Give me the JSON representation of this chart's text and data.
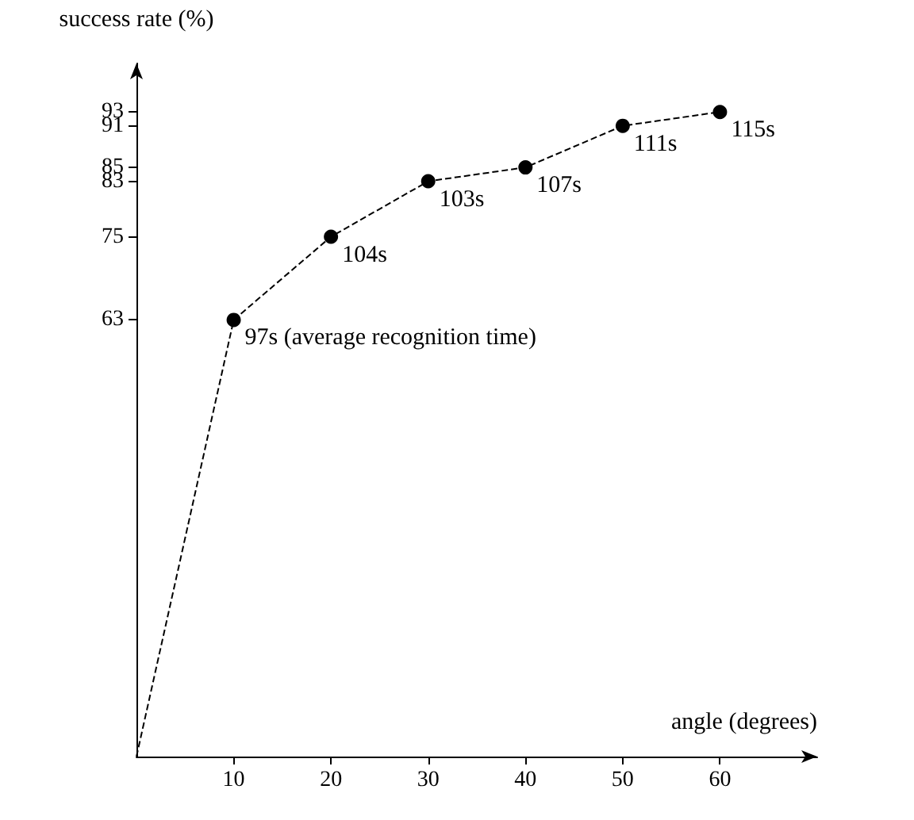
{
  "chart_data": {
    "type": "line",
    "xlabel": "angle (degrees)",
    "ylabel": "success rate (%)",
    "x": [
      0,
      10,
      20,
      30,
      40,
      50,
      60
    ],
    "values": [
      0,
      63,
      75,
      83,
      85,
      91,
      93
    ],
    "color": "#000000",
    "marker": "circle",
    "line_style": "dashed",
    "grid": false,
    "xlim": [
      0,
      70
    ],
    "xticks": [
      10,
      20,
      30,
      40,
      50,
      60
    ],
    "ylim": [
      0,
      100
    ],
    "yticks": [
      63,
      75,
      83,
      85,
      91,
      93
    ],
    "annotations": [
      {
        "text": "97s (average recognition time)",
        "x": 10,
        "y": 63
      },
      {
        "text": "104s",
        "x": 20,
        "y": 75
      },
      {
        "text": "103s",
        "x": 30,
        "y": 83
      },
      {
        "text": "107s",
        "x": 40,
        "y": 85
      },
      {
        "text": "111s",
        "x": 50,
        "y": 91
      },
      {
        "text": "115s",
        "x": 60,
        "y": 93
      }
    ]
  }
}
